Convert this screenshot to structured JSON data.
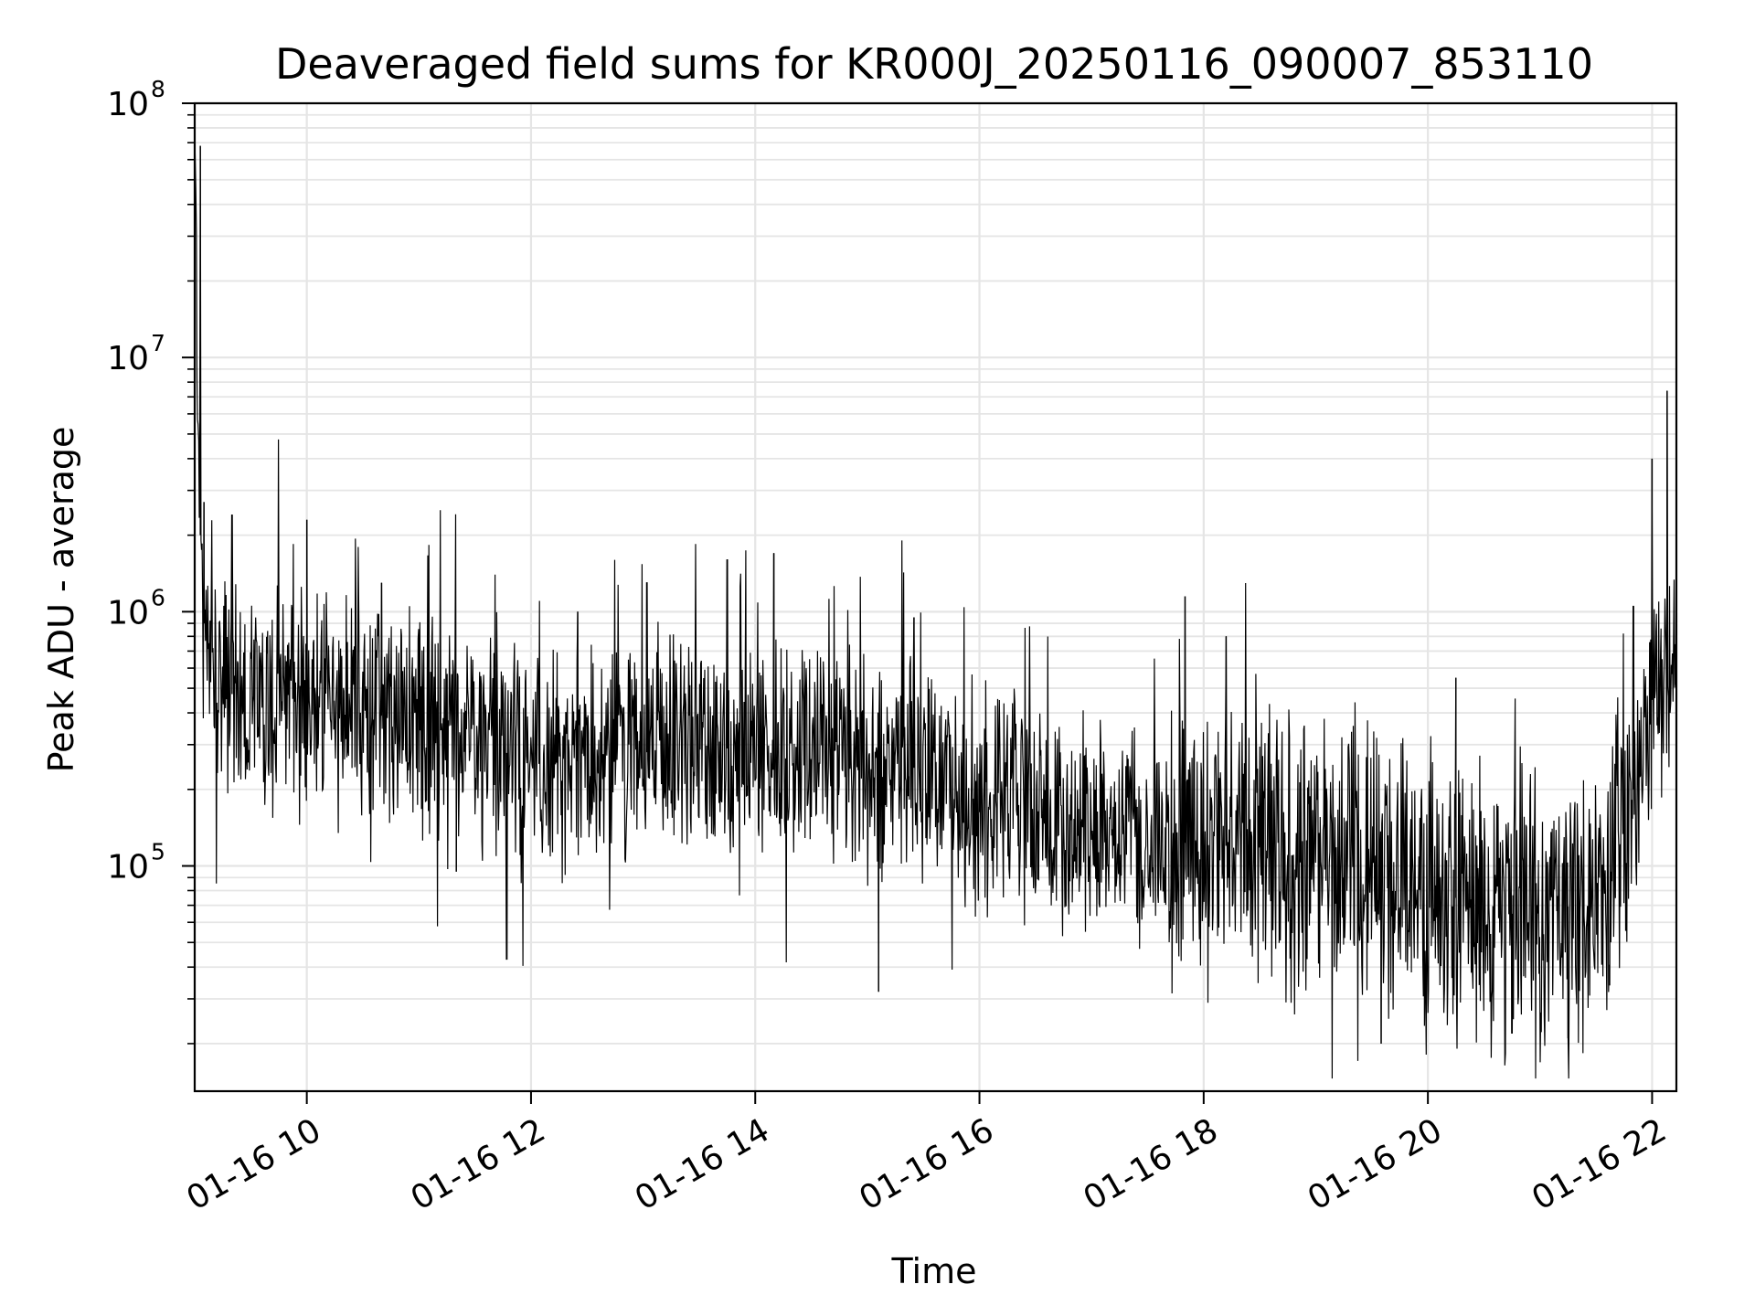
{
  "chart_data": {
    "type": "line",
    "title": "Deaveraged field sums for KR000J_20250116_090007_853110",
    "xlabel": "Time",
    "ylabel": "Peak ADU - average",
    "xlim": [
      "01-16 09:00",
      "01-16 22:13"
    ],
    "ylim": [
      13000,
      100000000
    ],
    "yscale": "log",
    "grid": true,
    "line_color": "#000000",
    "x_ticks": [
      "01-16 10",
      "01-16 12",
      "01-16 14",
      "01-16 16",
      "01-16 18",
      "01-16 20",
      "01-16 22"
    ],
    "y_ticks": [
      {
        "base": "10",
        "exp": "5",
        "value": 100000
      },
      {
        "base": "10",
        "exp": "6",
        "value": 1000000
      },
      {
        "base": "10",
        "exp": "7",
        "value": 10000000
      },
      {
        "base": "10",
        "exp": "8",
        "value": 100000000
      }
    ],
    "series": [
      {
        "name": "",
        "baseline": {
          "x": [
            "01-16 09:00",
            "01-16 09:03",
            "01-16 09:06",
            "01-16 09:10",
            "01-16 09:30",
            "01-16 10:00",
            "01-16 10:30",
            "01-16 11:00",
            "01-16 11:30",
            "01-16 12:00",
            "01-16 12:30",
            "01-16 13:00",
            "01-16 13:30",
            "01-16 14:00",
            "01-16 14:30",
            "01-16 15:00",
            "01-16 15:30",
            "01-16 16:00",
            "01-16 16:30",
            "01-16 17:00",
            "01-16 17:30",
            "01-16 18:00",
            "01-16 18:30",
            "01-16 19:00",
            "01-16 19:30",
            "01-16 20:00",
            "01-16 20:30",
            "01-16 21:00",
            "01-16 21:30",
            "01-16 21:50",
            "01-16 22:00",
            "01-16 22:13"
          ],
          "y": [
            60000000,
            2000000,
            700000,
            500000,
            450000,
            420000,
            400000,
            370000,
            320000,
            250000,
            260000,
            280000,
            280000,
            300000,
            290000,
            260000,
            240000,
            180000,
            160000,
            150000,
            130000,
            120000,
            120000,
            110000,
            100000,
            80000,
            70000,
            60000,
            80000,
            200000,
            450000,
            550000
          ]
        },
        "spikes": [
          {
            "x": "01-16 09:03",
            "y": 68000000
          },
          {
            "x": "01-16 09:05",
            "y": 2700000
          },
          {
            "x": "01-16 09:20",
            "y": 2400000
          },
          {
            "x": "01-16 10:00",
            "y": 2300000
          },
          {
            "x": "01-16 10:40",
            "y": 1300000
          },
          {
            "x": "01-16 11:20",
            "y": 95000
          },
          {
            "x": "01-16 11:47",
            "y": 43000
          },
          {
            "x": "01-16 12:25",
            "y": 1000000
          },
          {
            "x": "01-16 13:02",
            "y": 1300000
          },
          {
            "x": "01-16 13:45",
            "y": 1600000
          },
          {
            "x": "01-16 14:10",
            "y": 1700000
          },
          {
            "x": "01-16 15:06",
            "y": 32000
          },
          {
            "x": "01-16 15:25",
            "y": 950000
          },
          {
            "x": "01-16 17:50",
            "y": 1150000
          },
          {
            "x": "01-16 18:12",
            "y": 800000
          },
          {
            "x": "01-16 19:35",
            "y": 20000
          },
          {
            "x": "01-16 20:15",
            "y": 550000
          },
          {
            "x": "01-16 20:45",
            "y": 22000
          },
          {
            "x": "01-16 21:15",
            "y": 21000
          },
          {
            "x": "01-16 21:50",
            "y": 1050000
          },
          {
            "x": "01-16 22:00",
            "y": 4000000
          },
          {
            "x": "01-16 22:08",
            "y": 7400000
          }
        ]
      }
    ]
  }
}
